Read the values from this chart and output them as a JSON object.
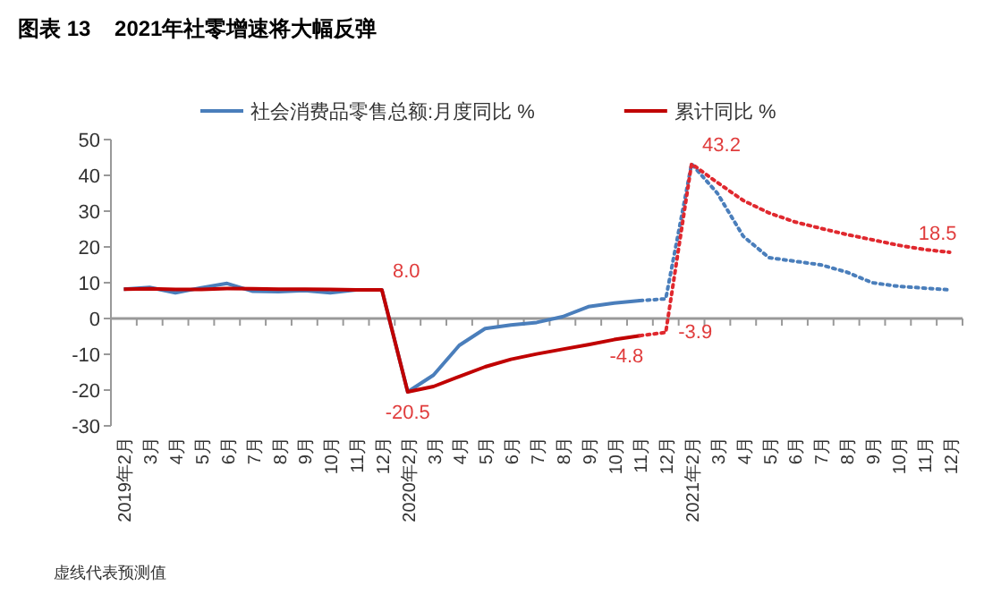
{
  "chart_data": {
    "type": "line",
    "title": "图表 13    2021年社零增速将大幅反弹",
    "categories": [
      "2019年2月",
      "3月",
      "4月",
      "5月",
      "6月",
      "7月",
      "8月",
      "9月",
      "10月",
      "11月",
      "12月",
      "2020年2月",
      "3月",
      "4月",
      "5月",
      "6月",
      "7月",
      "8月",
      "9月",
      "10月",
      "11月",
      "12月",
      "2021年2月",
      "3月",
      "4月",
      "5月",
      "6月",
      "7月",
      "8月",
      "9月",
      "10月",
      "11月",
      "12月"
    ],
    "series": [
      {
        "name": "社会消费品零售总额:月度同比 %",
        "color": "#4a7ebb",
        "line_style": "solid",
        "values": [
          8.2,
          8.7,
          7.2,
          8.6,
          9.8,
          7.6,
          7.5,
          7.8,
          7.2,
          8.0,
          8.0,
          -20.5,
          -15.8,
          -7.5,
          -2.8,
          -1.8,
          -1.1,
          0.5,
          3.3,
          4.3,
          5.0,
          null,
          null,
          null,
          null,
          null,
          null,
          null,
          null,
          null,
          null,
          null,
          null
        ]
      },
      {
        "color": "#4a7ebb",
        "line_style": "dotted",
        "values": [
          null,
          null,
          null,
          null,
          null,
          null,
          null,
          null,
          null,
          null,
          null,
          null,
          null,
          null,
          null,
          null,
          null,
          null,
          null,
          null,
          5.0,
          5.5,
          43.2,
          35,
          23,
          17,
          16,
          15,
          13,
          10,
          9,
          8.5,
          8
        ]
      },
      {
        "name": "累计同比 %",
        "color": "#c00000",
        "line_style": "solid",
        "values": [
          8.2,
          8.3,
          8.1,
          8.1,
          8.4,
          8.3,
          8.2,
          8.2,
          8.1,
          8.0,
          8.0,
          -20.5,
          -19,
          -16.2,
          -13.5,
          -11.4,
          -9.9,
          -8.6,
          -7.3,
          -5.9,
          -4.8,
          null,
          null,
          null,
          null,
          null,
          null,
          null,
          null,
          null,
          null,
          null,
          null
        ],
        "value_labels": [
          null,
          null,
          null,
          null,
          null,
          null,
          null,
          null,
          null,
          null,
          "8.0",
          "-20.5",
          null,
          null,
          null,
          null,
          null,
          null,
          null,
          null,
          "-4.8",
          null,
          null,
          null,
          null,
          null,
          null,
          null,
          null,
          null,
          null,
          null,
          null
        ]
      },
      {
        "color": "#e0282e",
        "line_style": "dotted",
        "values": [
          null,
          null,
          null,
          null,
          null,
          null,
          null,
          null,
          null,
          null,
          null,
          null,
          null,
          null,
          null,
          null,
          null,
          null,
          null,
          null,
          -4.8,
          -3.9,
          43.2,
          38,
          33,
          29.5,
          27,
          25.2,
          23.5,
          22,
          20.5,
          19.3,
          18.5
        ],
        "value_labels": [
          null,
          null,
          null,
          null,
          null,
          null,
          null,
          null,
          null,
          null,
          null,
          null,
          null,
          null,
          null,
          null,
          null,
          null,
          null,
          null,
          null,
          "-3.9",
          "43.2",
          null,
          null,
          null,
          null,
          null,
          null,
          null,
          null,
          null,
          "18.5"
        ]
      }
    ],
    "ylim": [
      -30,
      50
    ],
    "yticks": [
      -30,
      -20,
      -10,
      0,
      10,
      20,
      30,
      40,
      50
    ],
    "legend": "top",
    "annotations": [
      "虚线代表预测值"
    ]
  }
}
